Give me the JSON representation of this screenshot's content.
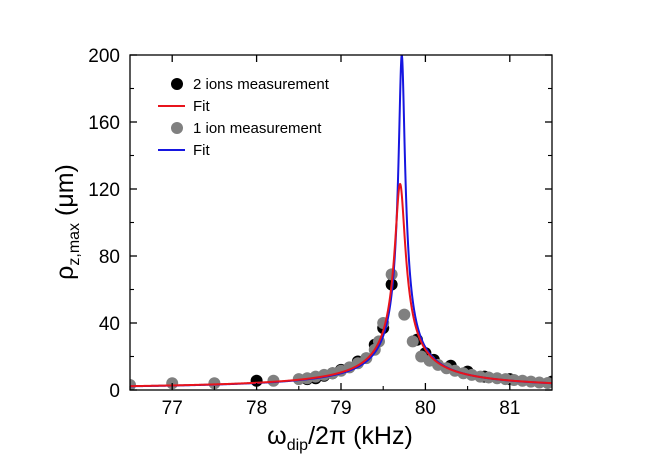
{
  "chart_data": {
    "type": "scatter",
    "title": "",
    "xlabel": {
      "main": "ω",
      "sub": "dip",
      "rest": "/2π (kHz)"
    },
    "ylabel": {
      "main": "ρ",
      "sub": "z,max",
      "rest": " (μm)"
    },
    "xlim": [
      76.5,
      81.5
    ],
    "ylim": [
      0,
      200
    ],
    "xticks": [
      77,
      78,
      79,
      80,
      81
    ],
    "yticks": [
      0,
      40,
      80,
      120,
      160,
      200
    ],
    "legend_position": "top-left",
    "series": [
      {
        "name": "2 ions measurement",
        "kind": "points",
        "color": "#000000",
        "points": [
          [
            78.0,
            5.5
          ],
          [
            78.6,
            6.5
          ],
          [
            78.7,
            7.0
          ],
          [
            78.8,
            8.5
          ],
          [
            78.9,
            10.0
          ],
          [
            79.0,
            12.0
          ],
          [
            79.2,
            17.0
          ],
          [
            79.4,
            27.0
          ],
          [
            79.5,
            37.0
          ],
          [
            79.6,
            63.0
          ],
          [
            79.9,
            30.0
          ],
          [
            80.0,
            22.0
          ],
          [
            80.1,
            18.0
          ],
          [
            80.3,
            14.5
          ],
          [
            80.5,
            11.0
          ],
          [
            80.7,
            8.0
          ],
          [
            81.0,
            6.5
          ],
          [
            81.5,
            5.0
          ]
        ]
      },
      {
        "name": "Fit",
        "kind": "line",
        "color": "#e8141c",
        "center": 79.7,
        "peak": 123,
        "halfwidth": 0.06,
        "offset": 0
      },
      {
        "name": "1 ion measurement",
        "kind": "points",
        "color": "#808080",
        "points": [
          [
            76.5,
            3.0
          ],
          [
            77.0,
            4.0
          ],
          [
            77.5,
            4.0
          ],
          [
            78.2,
            5.5
          ],
          [
            78.5,
            6.5
          ],
          [
            78.6,
            7.0
          ],
          [
            78.7,
            8.0
          ],
          [
            78.8,
            9.0
          ],
          [
            78.9,
            10.0
          ],
          [
            79.0,
            11.5
          ],
          [
            79.1,
            13.5
          ],
          [
            79.2,
            16.0
          ],
          [
            79.3,
            19.0
          ],
          [
            79.4,
            24.0
          ],
          [
            79.45,
            29.0
          ],
          [
            79.5,
            40.0
          ],
          [
            79.6,
            69.0
          ],
          [
            79.75,
            45.0
          ],
          [
            79.85,
            29.0
          ],
          [
            79.95,
            20.0
          ],
          [
            80.05,
            17.5
          ],
          [
            80.15,
            15.0
          ],
          [
            80.25,
            13.0
          ],
          [
            80.35,
            11.5
          ],
          [
            80.45,
            10.0
          ],
          [
            80.55,
            9.0
          ],
          [
            80.65,
            8.0
          ],
          [
            80.75,
            7.5
          ],
          [
            80.85,
            7.0
          ],
          [
            80.95,
            6.5
          ],
          [
            81.05,
            6.0
          ],
          [
            81.15,
            5.5
          ],
          [
            81.25,
            5.0
          ],
          [
            81.35,
            4.5
          ],
          [
            81.45,
            4.2
          ]
        ]
      },
      {
        "name": "Fit",
        "kind": "line",
        "color": "#1616e0",
        "center": 79.72,
        "peak": 200,
        "halfwidth": 0.036,
        "offset": 0
      }
    ]
  }
}
